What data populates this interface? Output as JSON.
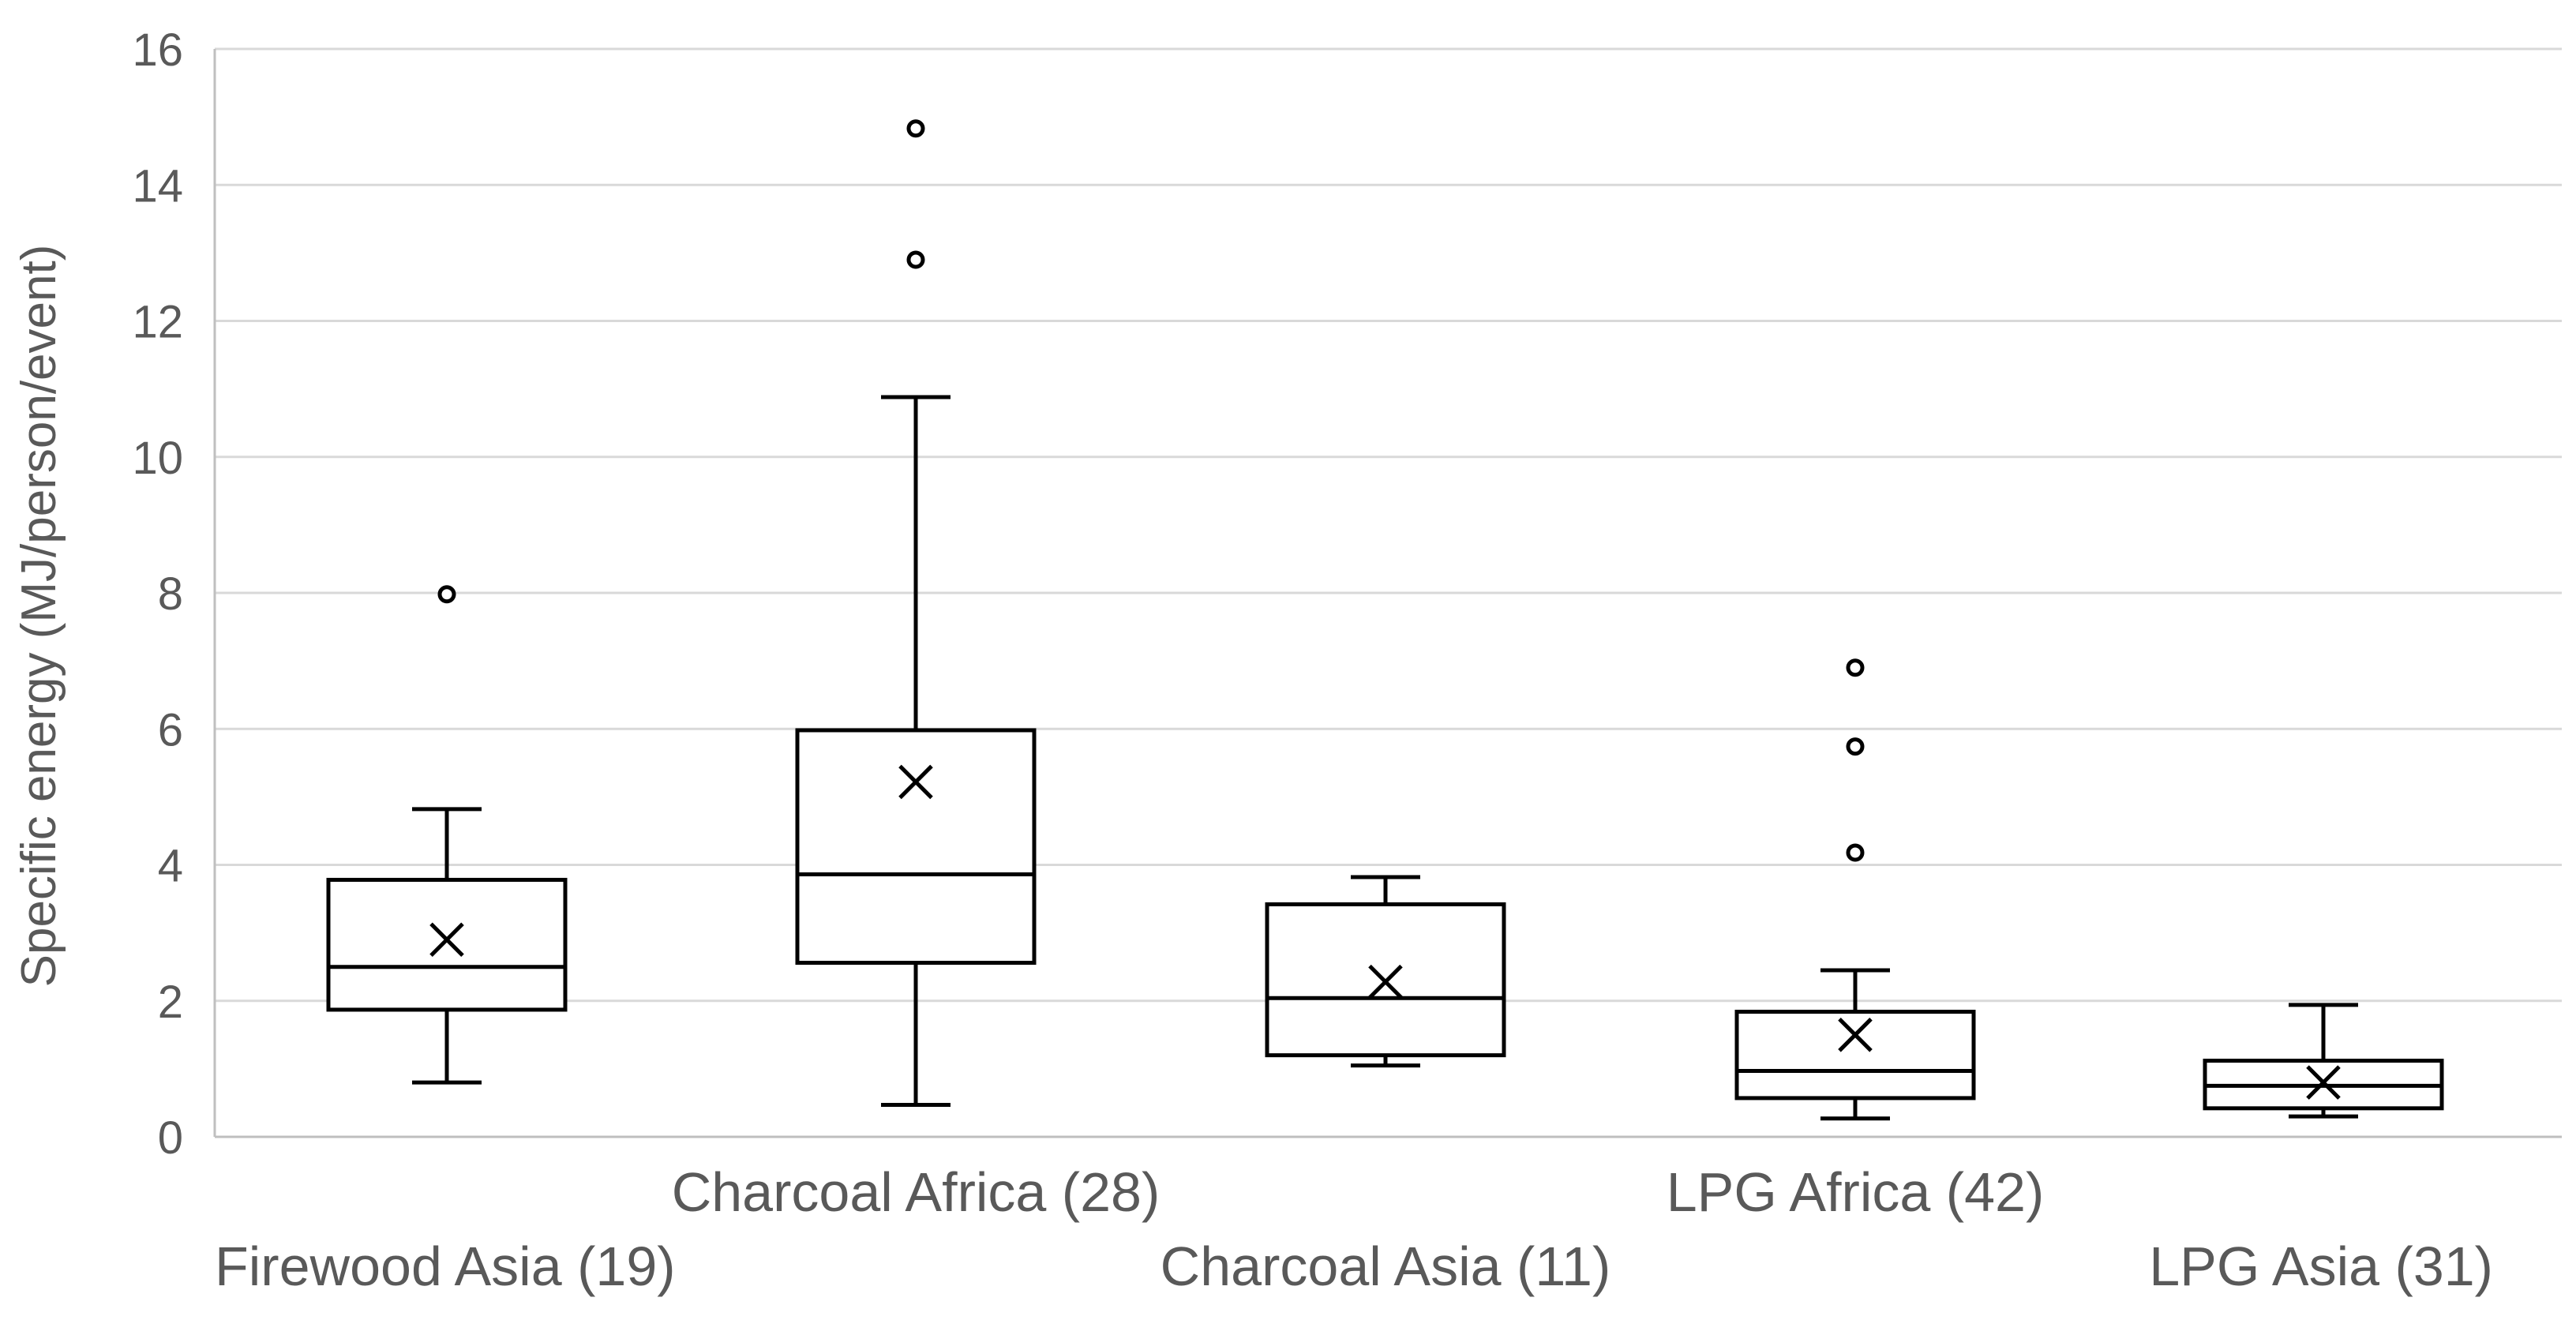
{
  "chart_data": {
    "type": "box",
    "title": "",
    "xlabel": "",
    "ylabel": "Specific energy (MJ/person/event)",
    "ylim": [
      0,
      16
    ],
    "yticks": [
      "0",
      "2",
      "4",
      "6",
      "8",
      "10",
      "12",
      "14",
      "16"
    ],
    "grid": true,
    "categories": [
      "Firewood Asia (19)",
      "Charcoal Africa (28)",
      "Charcoal Asia (11)",
      "LPG Africa (42)",
      "LPG Asia (31)"
    ],
    "boxes": [
      {
        "category": "Firewood Asia (19)",
        "whisker_low": 0.8,
        "q1": 1.87,
        "median": 2.5,
        "q3": 3.78,
        "whisker_high": 4.82,
        "mean": 2.9,
        "outliers": [
          7.98
        ]
      },
      {
        "category": "Charcoal Africa (28)",
        "whisker_low": 0.47,
        "q1": 2.56,
        "median": 3.86,
        "q3": 5.98,
        "whisker_high": 10.88,
        "mean": 5.22,
        "outliers": [
          12.9,
          14.83
        ]
      },
      {
        "category": "Charcoal Asia (11)",
        "whisker_low": 1.05,
        "q1": 1.2,
        "median": 2.04,
        "q3": 3.42,
        "whisker_high": 3.82,
        "mean": 2.28,
        "outliers": []
      },
      {
        "category": "LPG Africa (42)",
        "whisker_low": 0.27,
        "q1": 0.57,
        "median": 0.97,
        "q3": 1.84,
        "whisker_high": 2.45,
        "mean": 1.5,
        "outliers": [
          4.18,
          5.74,
          6.9
        ]
      },
      {
        "category": "LPG Asia (31)",
        "whisker_low": 0.3,
        "q1": 0.42,
        "median": 0.75,
        "q3": 1.12,
        "whisker_high": 1.94,
        "mean": 0.8,
        "outliers": []
      }
    ],
    "colors": {
      "box_stroke": "#000000",
      "grid": "#d9d9d9",
      "axis": "#bfbfbf",
      "text": "#595959"
    }
  }
}
